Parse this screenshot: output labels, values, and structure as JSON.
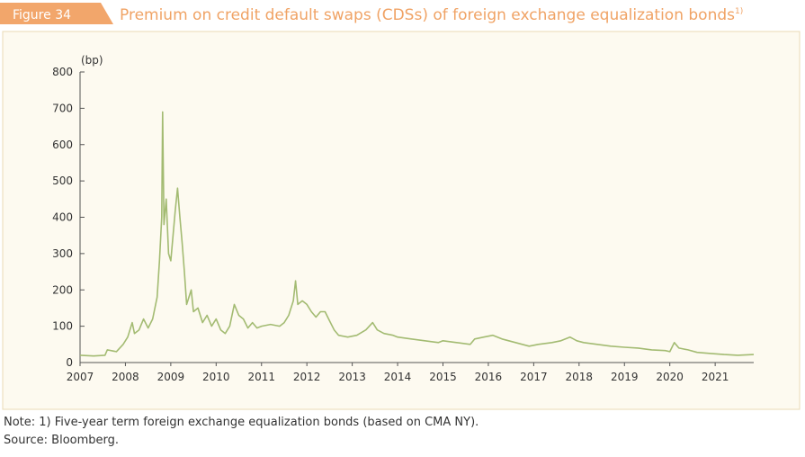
{
  "figure_label": "Figure 34",
  "chart_data": {
    "type": "line",
    "title": "Premium on credit default swaps (CDSs) of foreign exchange equalization bonds",
    "title_superscript": "1)",
    "y_unit": "(bp)",
    "x": [
      2007.0,
      2007.3,
      2007.55,
      2007.6,
      2007.8,
      2007.95,
      2008.05,
      2008.15,
      2008.2,
      2008.3,
      2008.4,
      2008.5,
      2008.6,
      2008.7,
      2008.75,
      2008.8,
      2008.82,
      2008.85,
      2008.9,
      2008.95,
      2009.0,
      2009.05,
      2009.1,
      2009.15,
      2009.2,
      2009.25,
      2009.3,
      2009.35,
      2009.45,
      2009.5,
      2009.6,
      2009.7,
      2009.8,
      2009.9,
      2010.0,
      2010.1,
      2010.2,
      2010.3,
      2010.4,
      2010.5,
      2010.6,
      2010.7,
      2010.8,
      2010.9,
      2011.0,
      2011.2,
      2011.4,
      2011.5,
      2011.6,
      2011.7,
      2011.75,
      2011.8,
      2011.9,
      2012.0,
      2012.1,
      2012.2,
      2012.3,
      2012.4,
      2012.5,
      2012.6,
      2012.7,
      2012.9,
      2013.1,
      2013.3,
      2013.45,
      2013.55,
      2013.7,
      2013.9,
      2014.0,
      2014.3,
      2014.6,
      2014.9,
      2015.0,
      2015.3,
      2015.6,
      2015.7,
      2015.9,
      2016.1,
      2016.3,
      2016.6,
      2016.9,
      2017.1,
      2017.4,
      2017.6,
      2017.8,
      2017.95,
      2018.1,
      2018.4,
      2018.7,
      2019.0,
      2019.3,
      2019.6,
      2019.9,
      2020.0,
      2020.1,
      2020.2,
      2020.4,
      2020.6,
      2020.9,
      2021.2,
      2021.5,
      2021.85
    ],
    "series": [
      {
        "name": "CDS premium",
        "color": "#a3bb72",
        "values": [
          20,
          18,
          20,
          35,
          30,
          50,
          70,
          110,
          80,
          90,
          120,
          95,
          120,
          180,
          280,
          400,
          690,
          380,
          450,
          300,
          280,
          350,
          420,
          480,
          400,
          330,
          250,
          160,
          200,
          140,
          150,
          110,
          130,
          100,
          120,
          90,
          80,
          100,
          160,
          130,
          120,
          95,
          110,
          95,
          100,
          105,
          100,
          110,
          130,
          170,
          225,
          160,
          170,
          160,
          140,
          125,
          140,
          140,
          115,
          90,
          75,
          70,
          75,
          90,
          110,
          90,
          80,
          75,
          70,
          65,
          60,
          55,
          60,
          55,
          50,
          65,
          70,
          75,
          65,
          55,
          45,
          50,
          55,
          60,
          70,
          60,
          55,
          50,
          45,
          42,
          40,
          35,
          33,
          30,
          55,
          40,
          35,
          28,
          25,
          22,
          20,
          22
        ]
      }
    ],
    "xlim": [
      2007,
      2021.85
    ],
    "xticks": [
      2007,
      2008,
      2009,
      2010,
      2011,
      2012,
      2013,
      2014,
      2015,
      2016,
      2017,
      2018,
      2019,
      2020,
      2021
    ],
    "ylim": [
      0,
      800
    ],
    "yticks": [
      0,
      100,
      200,
      300,
      400,
      500,
      600,
      700,
      800
    ],
    "grid": false
  },
  "notes": [
    "Note: 1) Five-year term foreign exchange equalization bonds (based on CMA NY).",
    "Source: Bloomberg."
  ]
}
